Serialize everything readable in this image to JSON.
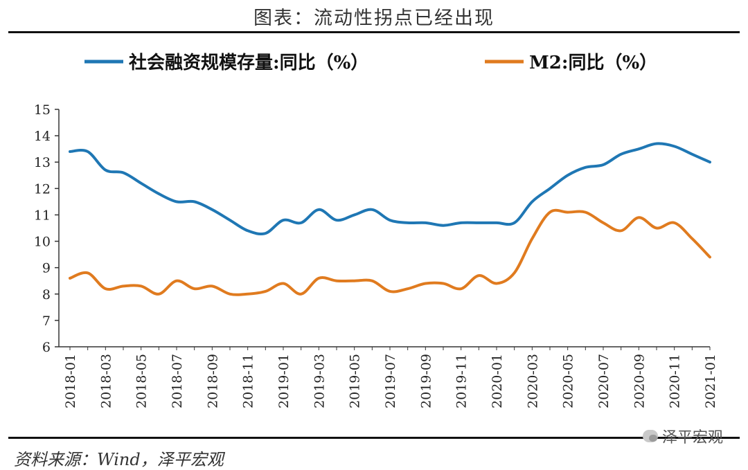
{
  "header": {
    "title": "图表：流动性拐点已经出现"
  },
  "footer": {
    "source": "资料来源：Wind，泽平宏观",
    "watermark": "泽平宏观"
  },
  "colors": {
    "series1": "#1f77b4",
    "series2": "#e07b1f",
    "axis": "#333333"
  },
  "chart_data": {
    "type": "line",
    "title": "图表：流动性拐点已经出现",
    "xlabel": "",
    "ylabel": "",
    "ylim": [
      6,
      15
    ],
    "yticks": [
      6,
      7,
      8,
      9,
      10,
      11,
      12,
      13,
      14,
      15
    ],
    "xtick_labels": [
      "2018-01",
      "2018-03",
      "2018-05",
      "2018-07",
      "2018-09",
      "2018-11",
      "2019-01",
      "2019-03",
      "2019-05",
      "2019-07",
      "2019-09",
      "2019-11",
      "2020-01",
      "2020-03",
      "2020-05",
      "2020-07",
      "2020-09",
      "2020-11",
      "2021-01"
    ],
    "legend_position": "top",
    "grid": false,
    "x": [
      "2018-01",
      "2018-02",
      "2018-03",
      "2018-04",
      "2018-05",
      "2018-06",
      "2018-07",
      "2018-08",
      "2018-09",
      "2018-10",
      "2018-11",
      "2018-12",
      "2019-01",
      "2019-02",
      "2019-03",
      "2019-04",
      "2019-05",
      "2019-06",
      "2019-07",
      "2019-08",
      "2019-09",
      "2019-10",
      "2019-11",
      "2019-12",
      "2020-01",
      "2020-02",
      "2020-03",
      "2020-04",
      "2020-05",
      "2020-06",
      "2020-07",
      "2020-08",
      "2020-09",
      "2020-10",
      "2020-11",
      "2020-12",
      "2021-01"
    ],
    "series": [
      {
        "name": "社会融资规模存量:同比（%）",
        "values": [
          13.4,
          13.4,
          12.7,
          12.6,
          12.2,
          11.8,
          11.5,
          11.5,
          11.2,
          10.8,
          10.4,
          10.3,
          10.8,
          10.7,
          11.2,
          10.8,
          11.0,
          11.2,
          10.8,
          10.7,
          10.7,
          10.6,
          10.7,
          10.7,
          10.7,
          10.7,
          11.5,
          12.0,
          12.5,
          12.8,
          12.9,
          13.3,
          13.5,
          13.7,
          13.6,
          13.3,
          13.0
        ]
      },
      {
        "name": "M2:同比（%）",
        "values": [
          8.6,
          8.8,
          8.2,
          8.3,
          8.3,
          8.0,
          8.5,
          8.2,
          8.3,
          8.0,
          8.0,
          8.1,
          8.4,
          8.0,
          8.6,
          8.5,
          8.5,
          8.5,
          8.1,
          8.2,
          8.4,
          8.4,
          8.2,
          8.7,
          8.4,
          8.8,
          10.1,
          11.1,
          11.1,
          11.1,
          10.7,
          10.4,
          10.9,
          10.5,
          10.7,
          10.1,
          9.4
        ]
      }
    ]
  }
}
